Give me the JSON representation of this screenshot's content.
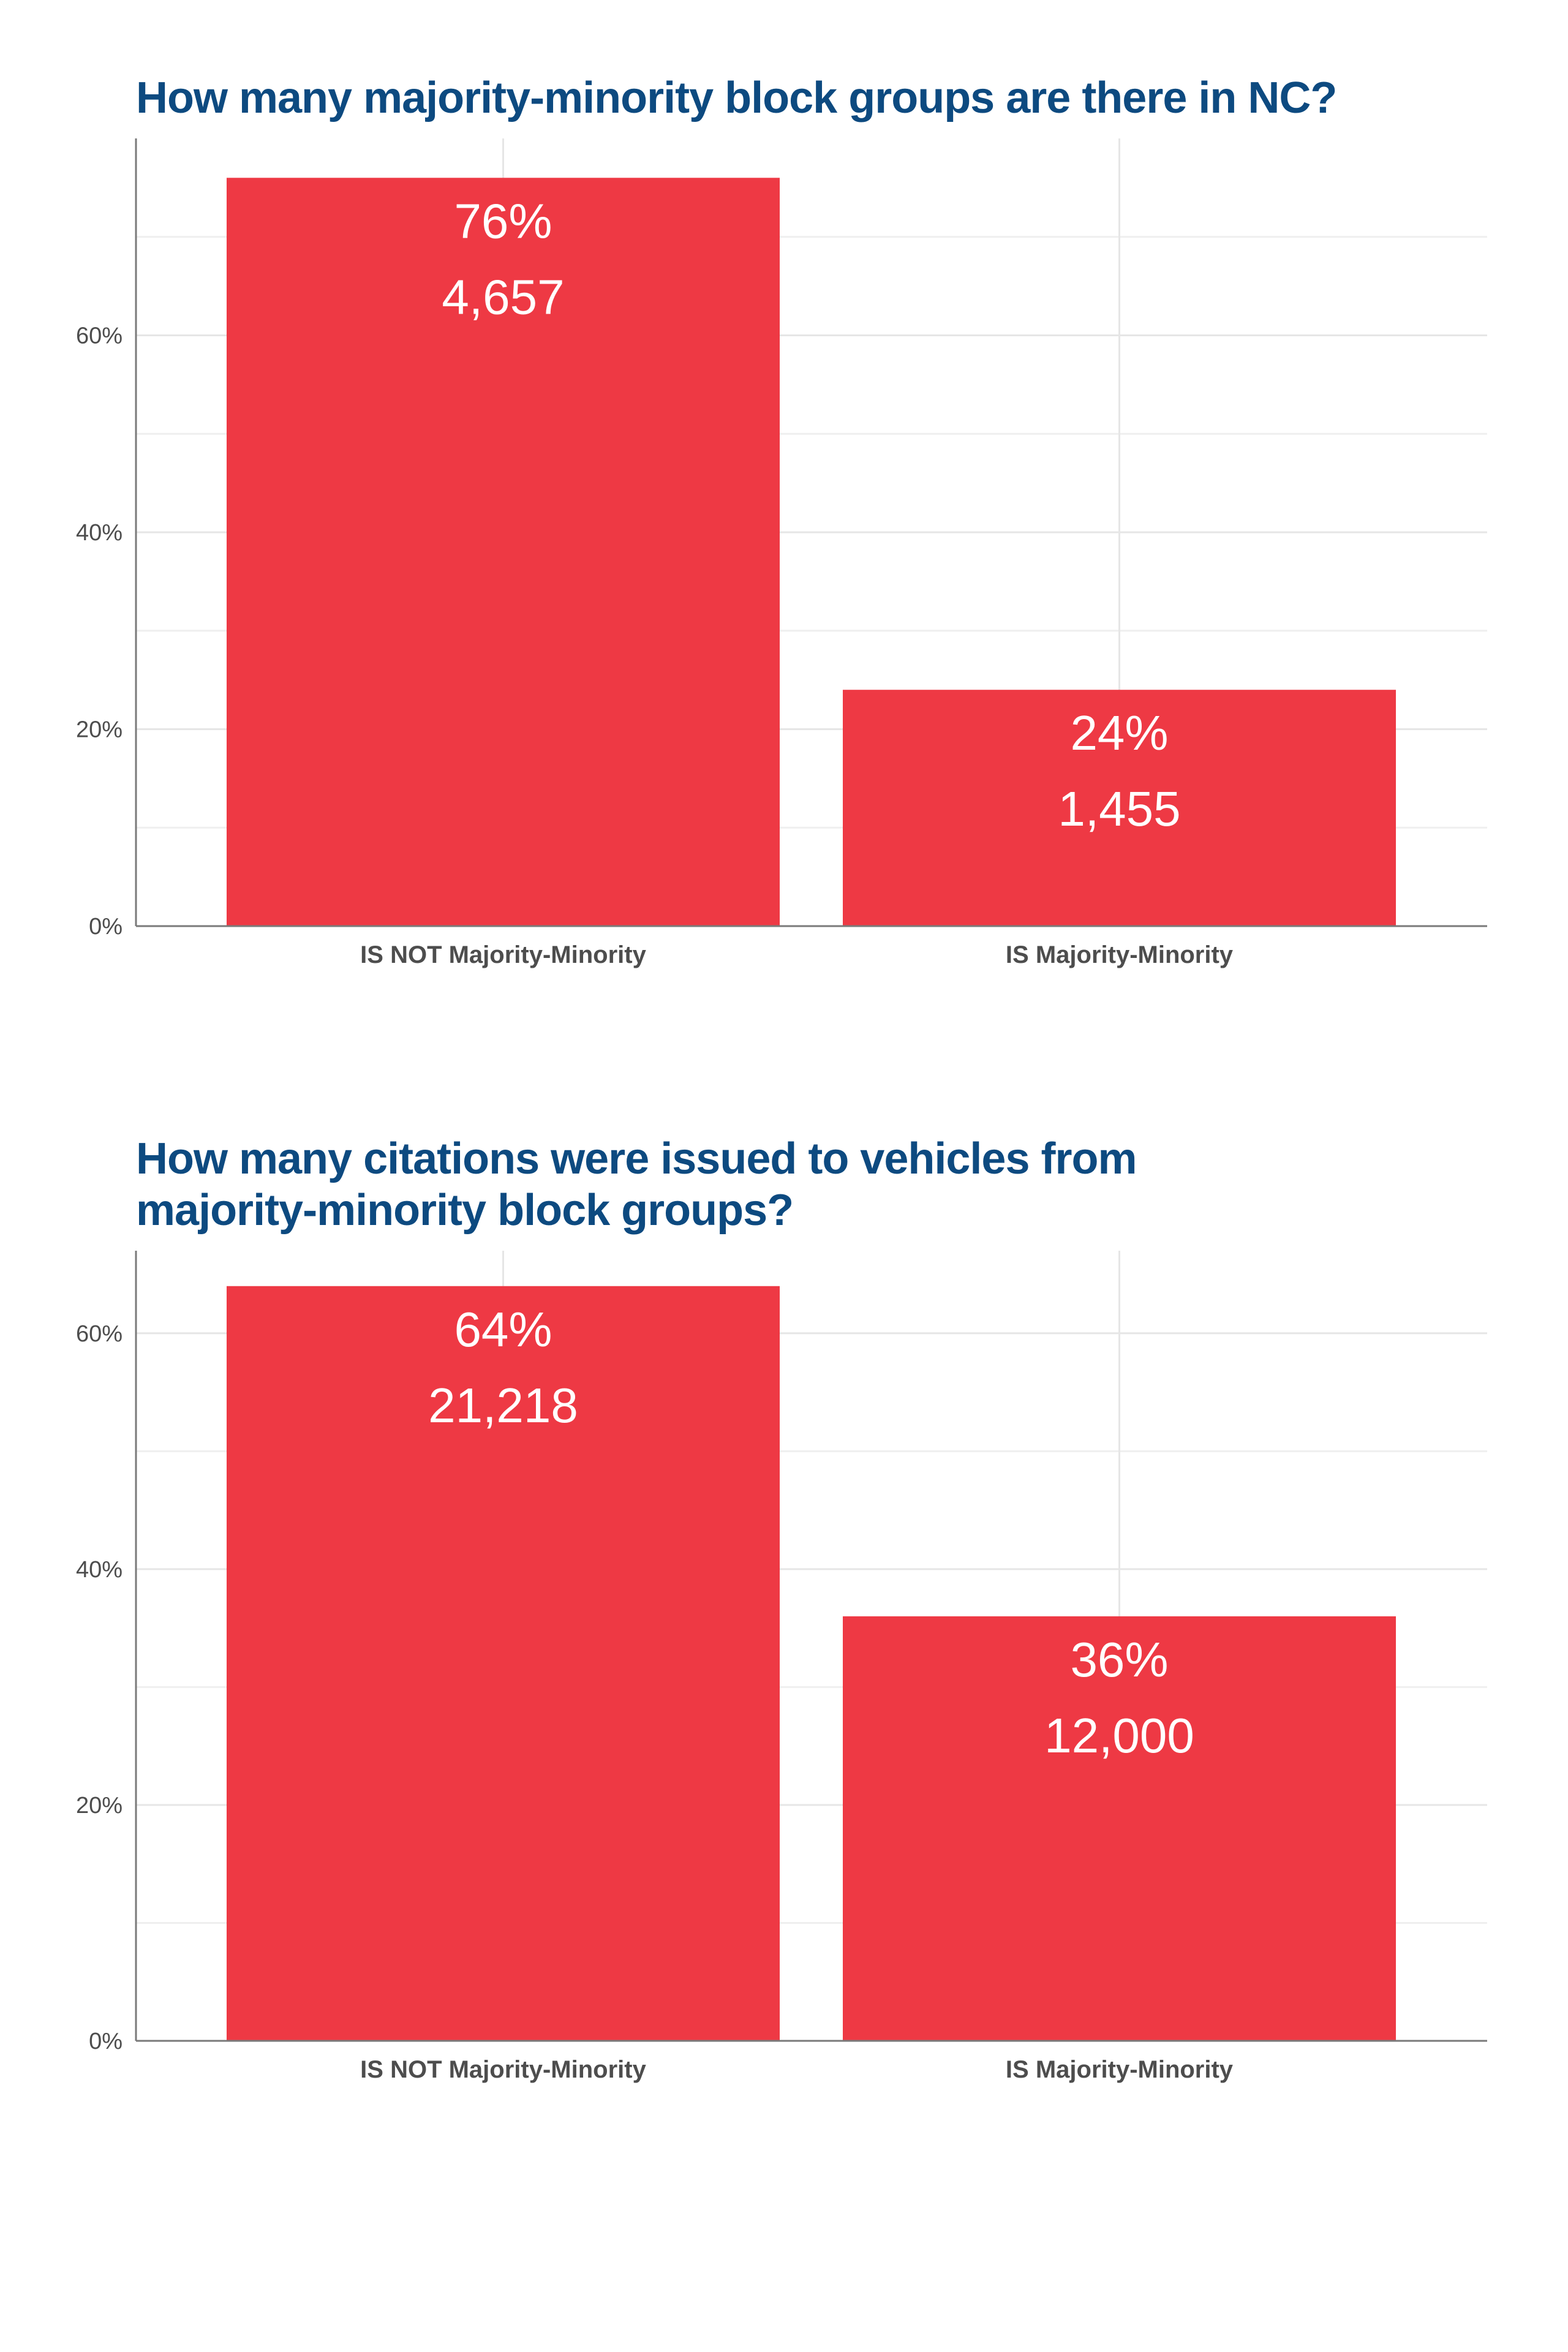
{
  "chart_data": [
    {
      "type": "bar",
      "title": "How many majority-minority block groups are there in NC?",
      "categories": [
        "IS NOT Majority-Minority",
        "IS Majority-Minority"
      ],
      "values": [
        76,
        24
      ],
      "percent_labels": [
        "76%",
        "24%"
      ],
      "count_labels": [
        "4,657",
        "1,455"
      ],
      "ylim": [
        0,
        80
      ],
      "yticks": [
        0,
        20,
        40,
        60
      ],
      "ytick_labels": [
        "0%",
        "20%",
        "40%",
        "60%"
      ],
      "xlabel": "",
      "ylabel": "",
      "grid": true,
      "bar_color": "#ee3944"
    },
    {
      "type": "bar",
      "title": "How many citations were issued to vehicles from majority-minority block groups?",
      "categories": [
        "IS NOT Majority-Minority",
        "IS Majority-Minority"
      ],
      "values": [
        64,
        36
      ],
      "percent_labels": [
        "64%",
        "36%"
      ],
      "count_labels": [
        "21,218",
        "12,000"
      ],
      "ylim": [
        0,
        67
      ],
      "yticks": [
        0,
        20,
        40,
        60
      ],
      "ytick_labels": [
        "0%",
        "20%",
        "40%",
        "60%"
      ],
      "xlabel": "",
      "ylabel": "",
      "grid": true,
      "bar_color": "#ee3944"
    }
  ]
}
